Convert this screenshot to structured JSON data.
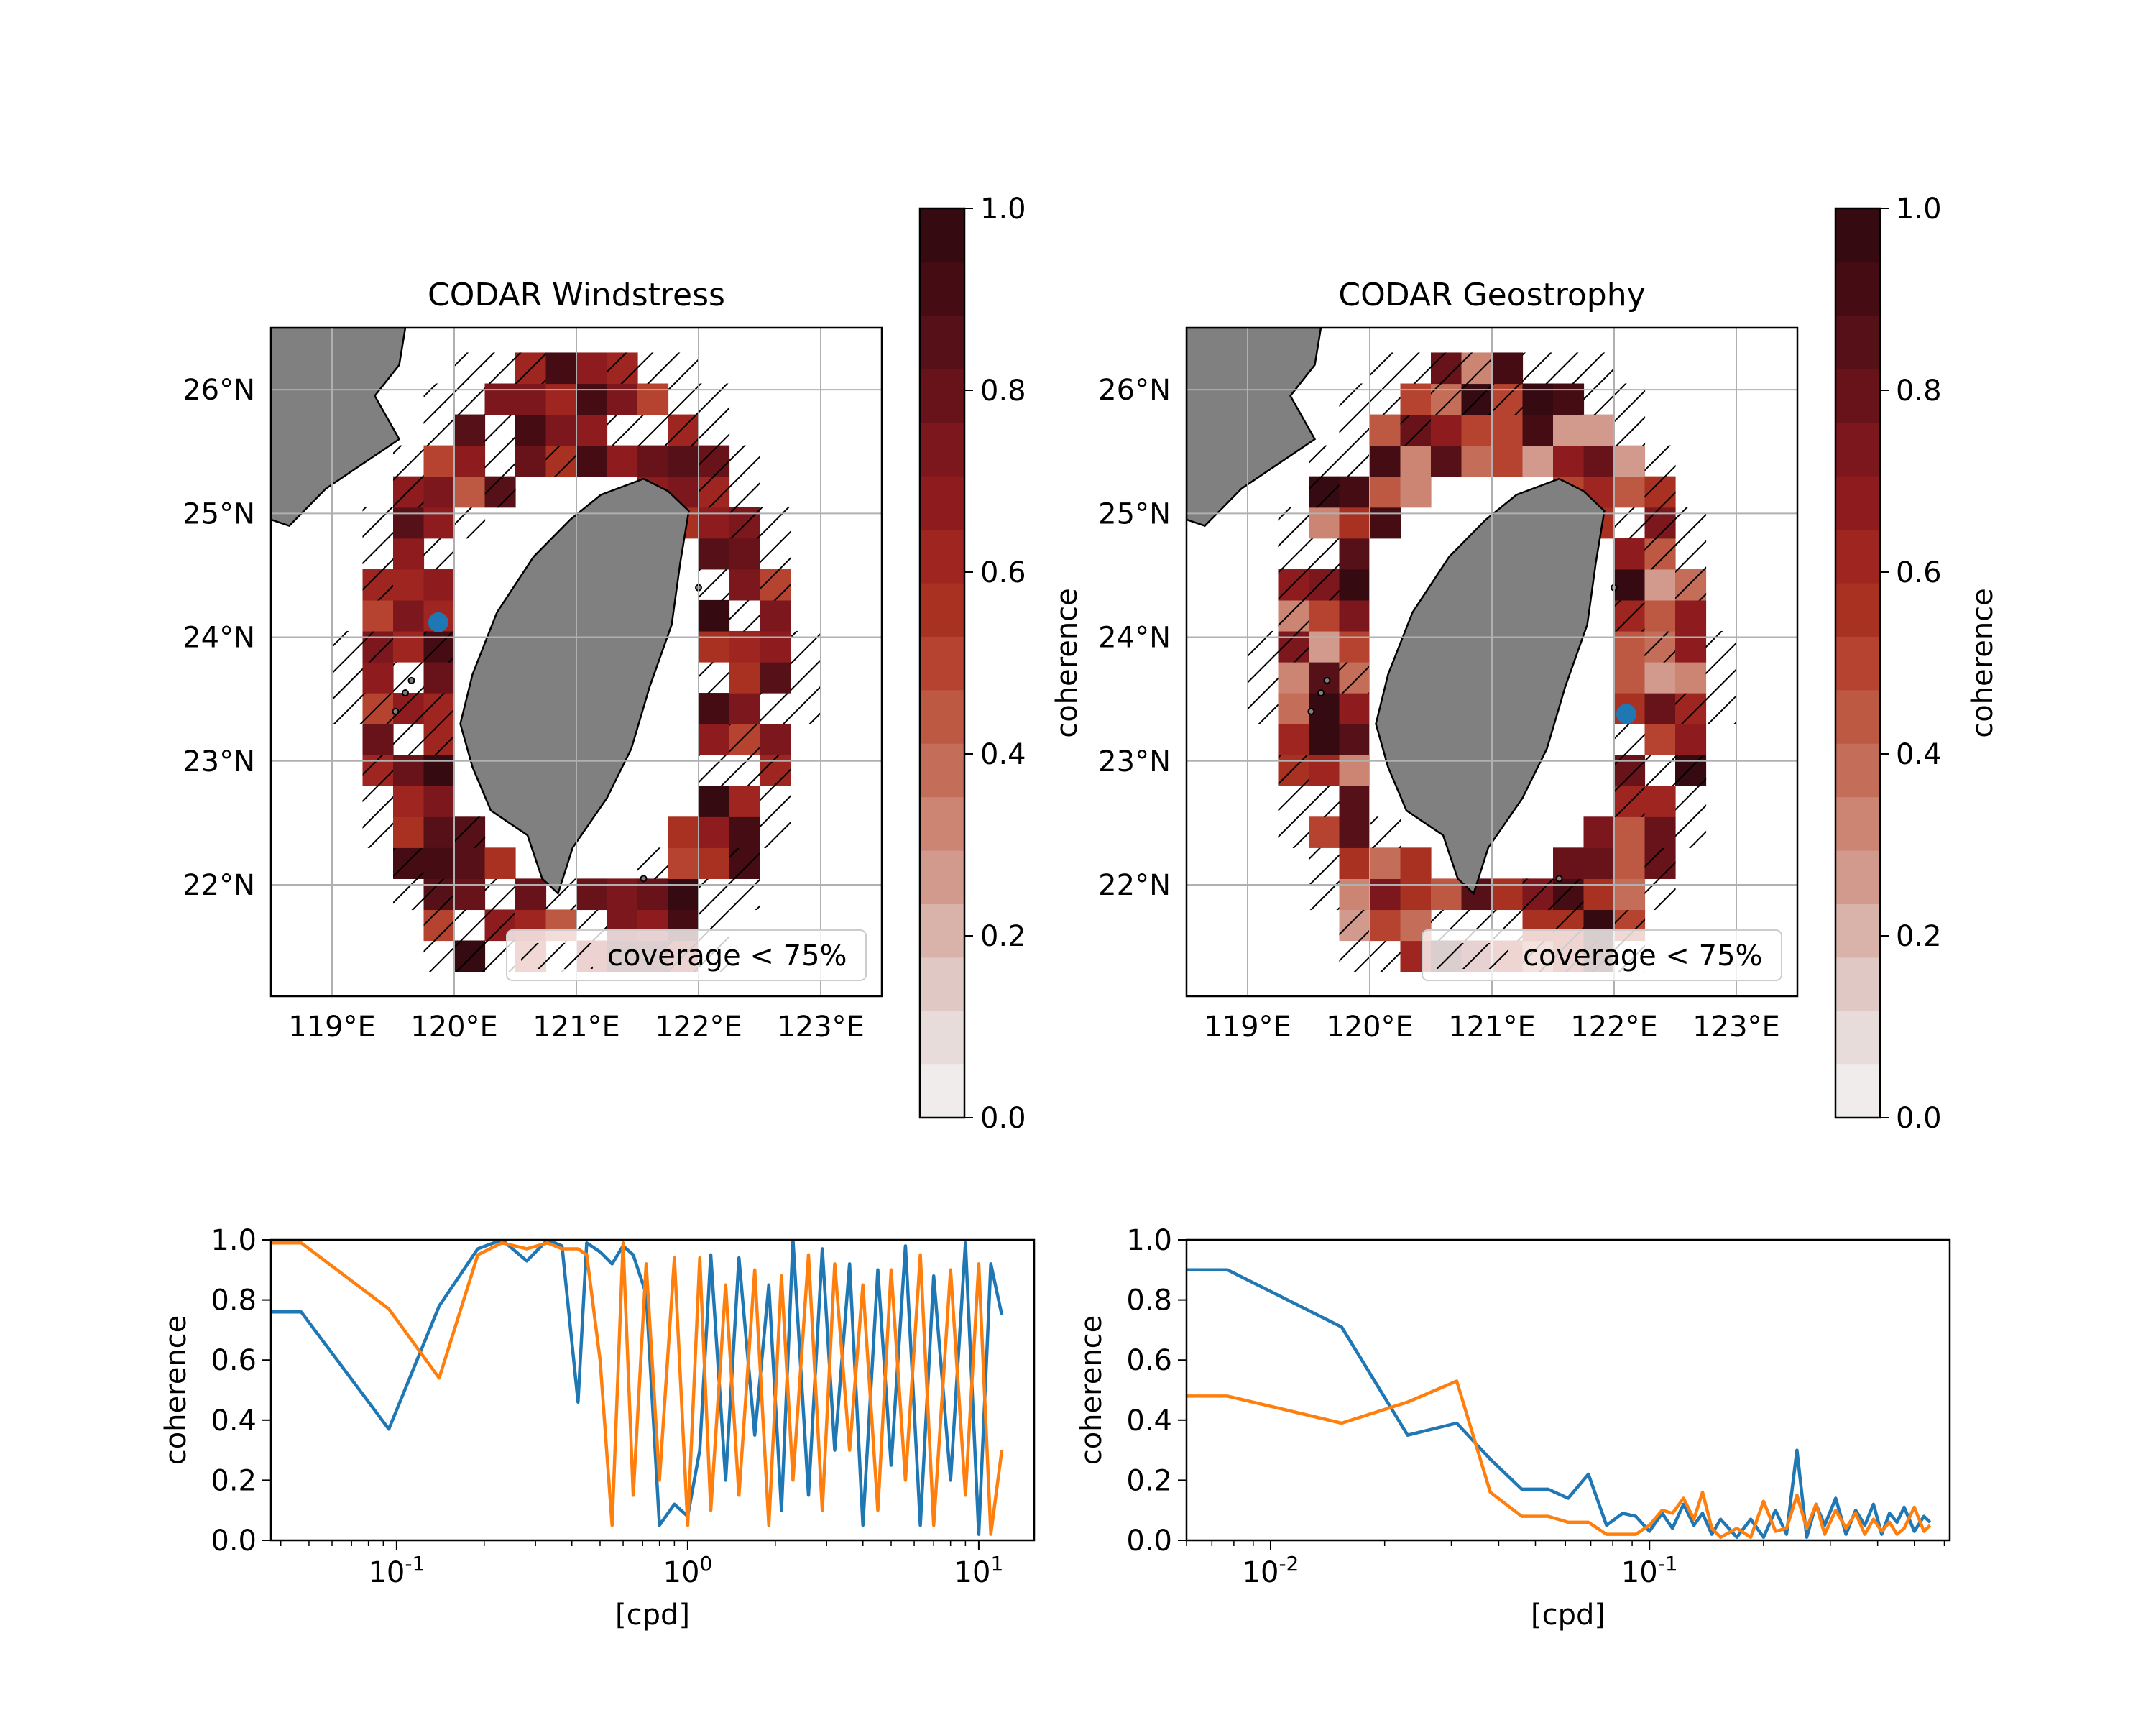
{
  "colors": {
    "blue": "#1f77b4",
    "orange": "#ff7f0e",
    "land": "#808080",
    "grid": "#b0b0b0",
    "cmap": [
      "#f0ecec",
      "#e8dcda",
      "#e0c9c5",
      "#d9b2aa",
      "#d29a8d",
      "#cc8473",
      "#c46e5a",
      "#bd5843",
      "#b64330",
      "#a93122",
      "#9e2520",
      "#8e1c1f",
      "#7b171d",
      "#68131a",
      "#561017",
      "#450d13",
      "#350a10"
    ]
  },
  "chart_data": [
    {
      "type": "heatmap",
      "title": "CODAR Windstress",
      "x_ticks": [
        "119°E",
        "120°E",
        "121°E",
        "122°E",
        "123°E"
      ],
      "y_ticks": [
        "22°N",
        "23°N",
        "24°N",
        "25°N",
        "26°N"
      ],
      "xlim": [
        118.5,
        123.5
      ],
      "ylim": [
        21.1,
        26.5
      ],
      "colorbar": {
        "label": "coherence",
        "ticks": [
          "0.0",
          "0.2",
          "0.4",
          "0.6",
          "0.8",
          "1.0"
        ],
        "range": [
          0,
          1
        ]
      },
      "legend": {
        "label": "coverage < 75%",
        "position": "lower right"
      },
      "marker": {
        "lon": 119.87,
        "lat": 24.12
      }
    },
    {
      "type": "heatmap",
      "title": "CODAR Geostrophy",
      "x_ticks": [
        "119°E",
        "120°E",
        "121°E",
        "122°E",
        "123°E"
      ],
      "y_ticks": [
        "22°N",
        "23°N",
        "24°N",
        "25°N",
        "26°N"
      ],
      "xlim": [
        118.5,
        123.5
      ],
      "ylim": [
        21.1,
        26.5
      ],
      "colorbar": {
        "label": "coherence",
        "ticks": [
          "0.0",
          "0.2",
          "0.4",
          "0.6",
          "0.8",
          "1.0"
        ],
        "range": [
          0,
          1
        ]
      },
      "legend": {
        "label": "coverage < 75%",
        "position": "lower right"
      },
      "marker": {
        "lon": 122.1,
        "lat": 23.38
      }
    },
    {
      "type": "line",
      "xlabel": "[cpd]",
      "ylabel": "coherence",
      "x_scale": "log",
      "xlim": [
        0.037,
        15.5
      ],
      "ylim": [
        0,
        1
      ],
      "y_ticks": [
        "0.0",
        "0.2",
        "0.4",
        "0.6",
        "0.8",
        "1.0"
      ],
      "series": [
        {
          "color": "blue",
          "x": [
            0.037,
            0.047,
            0.094,
            0.14,
            0.19,
            0.23,
            0.28,
            0.33,
            0.37,
            0.42,
            0.45,
            0.5,
            0.55,
            0.6,
            0.65,
            0.72,
            0.8,
            0.9,
            1.0,
            1.1,
            1.2,
            1.35,
            1.5,
            1.7,
            1.9,
            2.1,
            2.3,
            2.6,
            2.9,
            3.2,
            3.6,
            4.0,
            4.5,
            5.0,
            5.6,
            6.3,
            7.0,
            8.0,
            9.0,
            10.0,
            11.0,
            12.0
          ],
          "y": [
            0.76,
            0.76,
            0.37,
            0.78,
            0.97,
            1.0,
            0.93,
            1.0,
            0.98,
            0.46,
            0.99,
            0.96,
            0.92,
            0.98,
            0.95,
            0.82,
            0.05,
            0.12,
            0.08,
            0.3,
            0.95,
            0.2,
            0.94,
            0.35,
            0.85,
            0.1,
            1.0,
            0.15,
            0.97,
            0.3,
            0.92,
            0.05,
            0.9,
            0.25,
            0.98,
            0.05,
            0.88,
            0.2,
            0.99,
            0.02,
            0.92,
            0.75
          ]
        },
        {
          "color": "orange",
          "x": [
            0.037,
            0.047,
            0.094,
            0.14,
            0.19,
            0.23,
            0.28,
            0.33,
            0.37,
            0.42,
            0.45,
            0.5,
            0.55,
            0.6,
            0.65,
            0.72,
            0.8,
            0.9,
            1.0,
            1.1,
            1.2,
            1.35,
            1.5,
            1.7,
            1.9,
            2.1,
            2.3,
            2.6,
            2.9,
            3.2,
            3.6,
            4.0,
            4.5,
            5.0,
            5.6,
            6.3,
            7.0,
            8.0,
            9.0,
            10.0,
            11.0,
            12.0
          ],
          "y": [
            0.99,
            0.99,
            0.77,
            0.54,
            0.95,
            0.99,
            0.97,
            0.99,
            0.97,
            0.97,
            0.95,
            0.6,
            0.05,
            0.99,
            0.15,
            0.92,
            0.2,
            0.94,
            0.05,
            0.94,
            0.1,
            0.85,
            0.15,
            0.9,
            0.05,
            0.88,
            0.2,
            0.95,
            0.1,
            0.92,
            0.3,
            0.85,
            0.1,
            0.9,
            0.2,
            0.95,
            0.05,
            0.9,
            0.15,
            0.92,
            0.02,
            0.3
          ]
        }
      ]
    },
    {
      "type": "line",
      "xlabel": "[cpd]",
      "ylabel": "coherence",
      "x_scale": "log",
      "xlim": [
        0.006,
        0.62
      ],
      "ylim": [
        0,
        1
      ],
      "y_ticks": [
        "0.0",
        "0.2",
        "0.4",
        "0.6",
        "0.8",
        "1.0"
      ],
      "series": [
        {
          "color": "blue",
          "x": [
            0.006,
            0.0077,
            0.0154,
            0.023,
            0.031,
            0.038,
            0.046,
            0.054,
            0.061,
            0.069,
            0.077,
            0.085,
            0.092,
            0.1,
            0.108,
            0.115,
            0.123,
            0.131,
            0.138,
            0.146,
            0.154,
            0.17,
            0.185,
            0.2,
            0.215,
            0.23,
            0.245,
            0.26,
            0.275,
            0.29,
            0.31,
            0.33,
            0.35,
            0.37,
            0.39,
            0.41,
            0.43,
            0.45,
            0.47,
            0.5,
            0.53,
            0.55
          ],
          "y": [
            0.9,
            0.9,
            0.71,
            0.35,
            0.39,
            0.27,
            0.17,
            0.17,
            0.14,
            0.22,
            0.05,
            0.09,
            0.08,
            0.03,
            0.09,
            0.04,
            0.12,
            0.05,
            0.09,
            0.02,
            0.07,
            0.01,
            0.07,
            0.01,
            0.1,
            0.02,
            0.3,
            0.01,
            0.12,
            0.05,
            0.14,
            0.02,
            0.1,
            0.05,
            0.12,
            0.02,
            0.09,
            0.06,
            0.11,
            0.03,
            0.08,
            0.06
          ]
        },
        {
          "color": "orange",
          "x": [
            0.006,
            0.0077,
            0.0154,
            0.023,
            0.031,
            0.038,
            0.046,
            0.054,
            0.061,
            0.069,
            0.077,
            0.085,
            0.092,
            0.1,
            0.108,
            0.115,
            0.123,
            0.131,
            0.138,
            0.146,
            0.154,
            0.17,
            0.185,
            0.2,
            0.215,
            0.23,
            0.245,
            0.26,
            0.275,
            0.29,
            0.31,
            0.33,
            0.35,
            0.37,
            0.39,
            0.41,
            0.43,
            0.45,
            0.47,
            0.5,
            0.53,
            0.55
          ],
          "y": [
            0.48,
            0.48,
            0.39,
            0.46,
            0.53,
            0.16,
            0.08,
            0.08,
            0.06,
            0.06,
            0.02,
            0.02,
            0.02,
            0.05,
            0.1,
            0.09,
            0.14,
            0.07,
            0.16,
            0.04,
            0.01,
            0.04,
            0.01,
            0.13,
            0.03,
            0.04,
            0.15,
            0.04,
            0.12,
            0.02,
            0.1,
            0.04,
            0.09,
            0.02,
            0.07,
            0.03,
            0.06,
            0.02,
            0.04,
            0.11,
            0.03,
            0.05
          ]
        }
      ]
    }
  ]
}
